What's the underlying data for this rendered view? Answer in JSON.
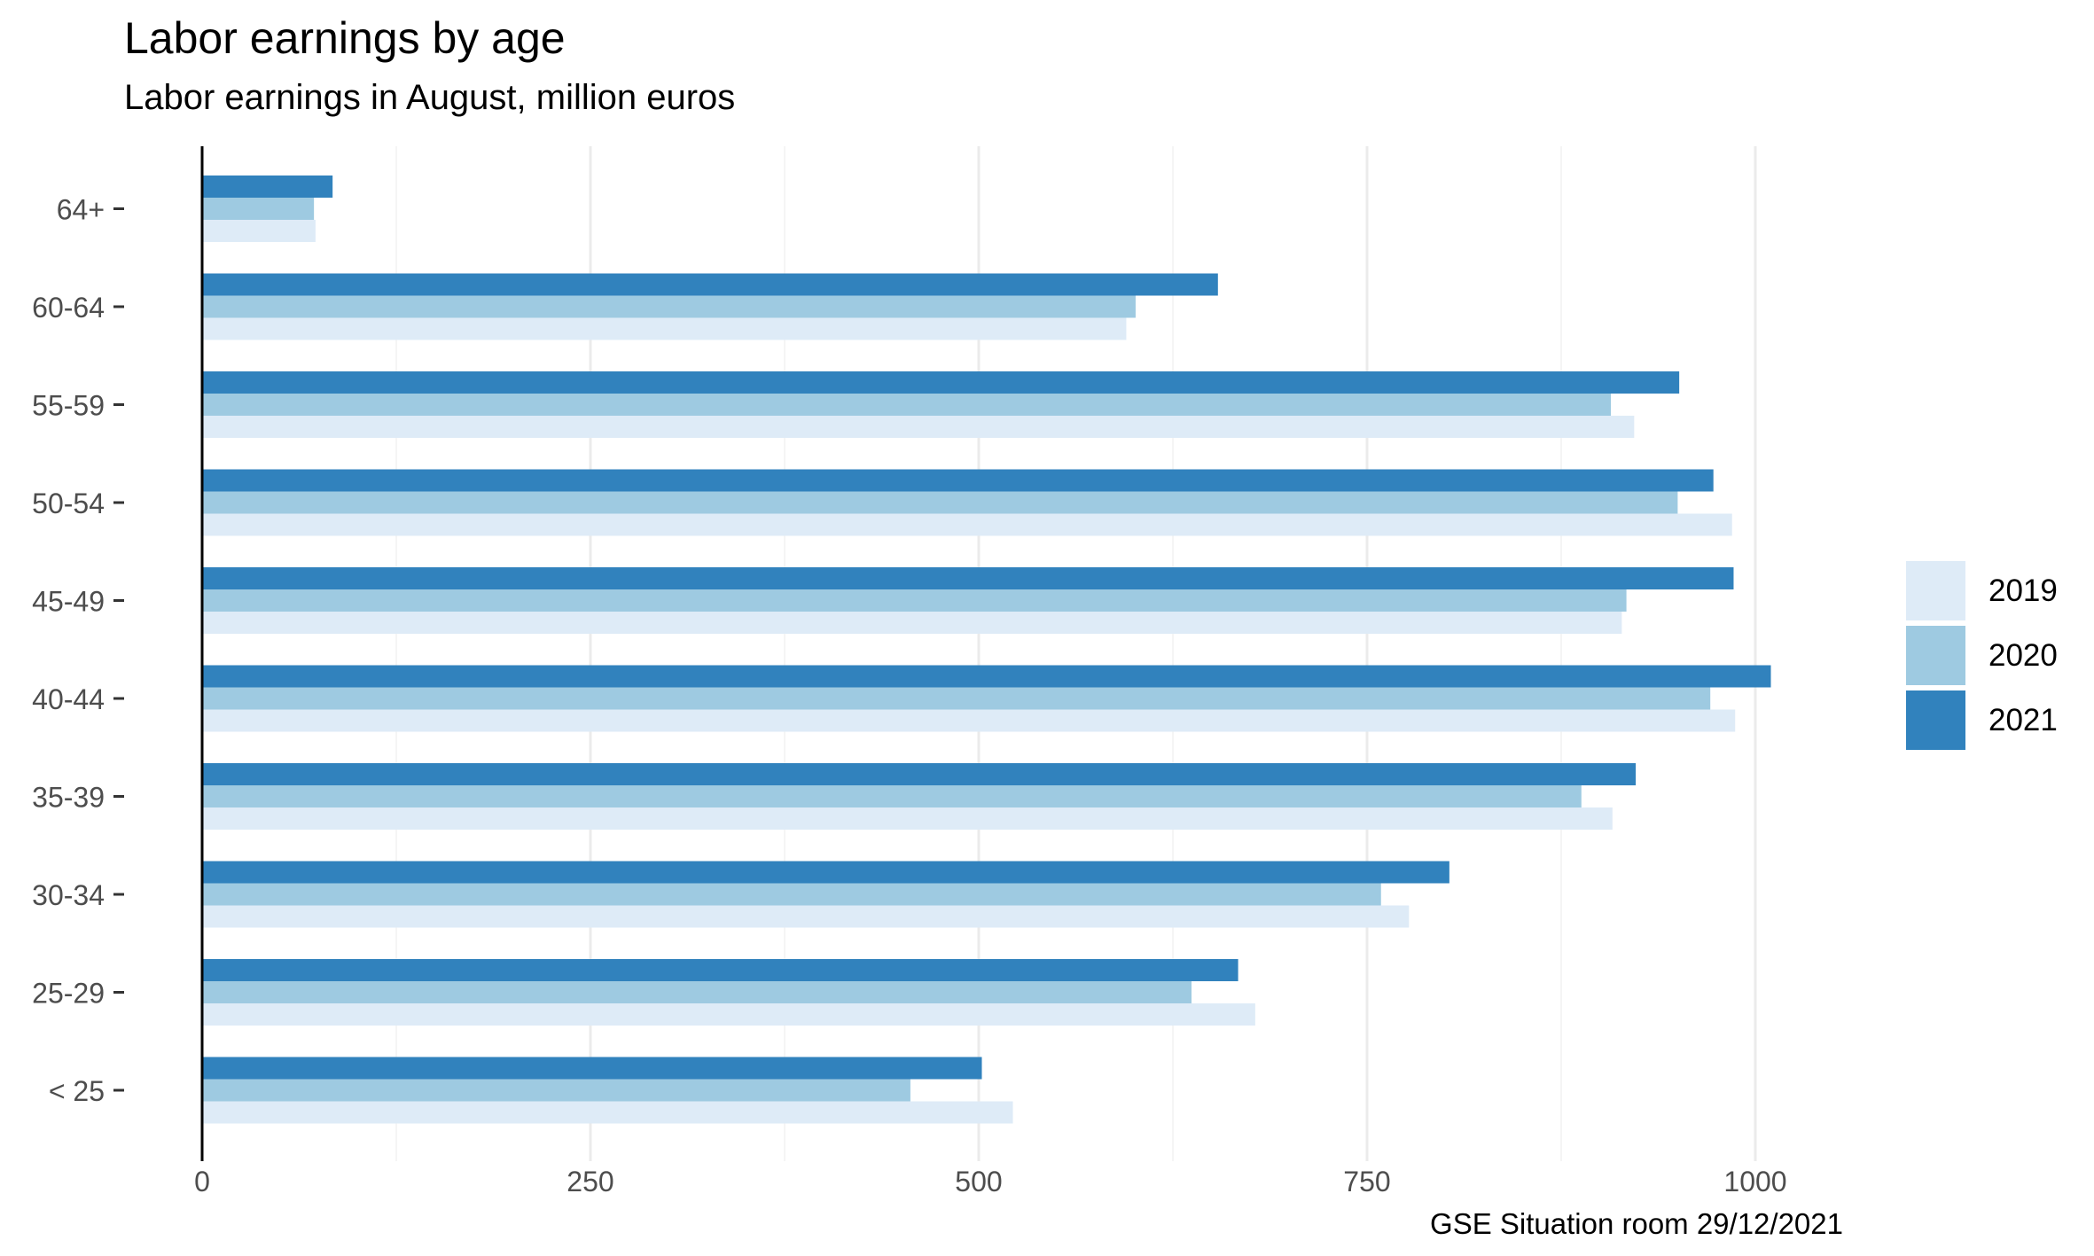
{
  "title": "Labor earnings by age",
  "subtitle": "Labor earnings in August, million euros",
  "caption": "GSE Situation room 29/12/2021",
  "colors": {
    "2019": "#deebf7",
    "2020": "#9ecae1",
    "2021": "#3182bd",
    "grid": "#ebebeb",
    "axis": "#000000",
    "tick_text": "#4d4d4d"
  },
  "chart_data": {
    "type": "bar",
    "orientation": "horizontal",
    "title": "Labor earnings by age",
    "subtitle": "Labor earnings in August, million euros",
    "xlabel": "",
    "ylabel": "",
    "xlim": [
      0,
      1100
    ],
    "xticks": [
      0,
      250,
      500,
      750,
      1000
    ],
    "xtick_labels": [
      "0",
      "250",
      "500",
      "750",
      "1000"
    ],
    "grid": true,
    "legend_position": "right",
    "categories": [
      "< 25",
      "25-29",
      "30-34",
      "35-39",
      "40-44",
      "45-49",
      "50-54",
      "55-59",
      "60-64",
      "64+"
    ],
    "series": [
      {
        "name": "2019",
        "values": [
          522,
          678,
          777,
          908,
          987,
          914,
          985,
          922,
          595,
          73
        ]
      },
      {
        "name": "2020",
        "values": [
          456,
          637,
          759,
          888,
          971,
          917,
          950,
          907,
          601,
          72
        ]
      },
      {
        "name": "2021",
        "values": [
          502,
          667,
          803,
          923,
          1010,
          986,
          973,
          951,
          654,
          84
        ]
      }
    ]
  },
  "legend": {
    "items": [
      "2019",
      "2020",
      "2021"
    ]
  }
}
